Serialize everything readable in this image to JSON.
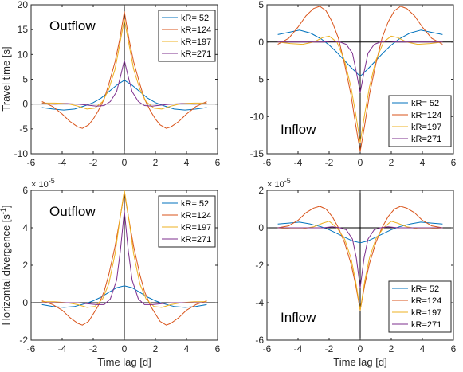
{
  "colors": {
    "kR52": "#0072BD",
    "kR124": "#D95319",
    "kR197": "#EDB120",
    "kR271": "#7E2F8E",
    "axis": "#262626",
    "zero_line": "#000000"
  },
  "chart_data": [
    {
      "type": "line",
      "panel": "top-left",
      "annotation": "Outflow",
      "xlabel": "",
      "ylabel": "Travel time [s]",
      "exponent": "",
      "xlim": [
        -6,
        6
      ],
      "ylim": [
        -10,
        20
      ],
      "xticks": [
        -6,
        -4,
        -2,
        0,
        2,
        4,
        6
      ],
      "yticks": [
        -10,
        -5,
        0,
        5,
        10,
        15,
        20
      ],
      "legend_position": "top-right",
      "grid": false,
      "series": [
        {
          "name": "kR= 52",
          "color_key": "kR52",
          "x": [
            -5.3,
            -4.6,
            -3.9,
            -3.2,
            -2.5,
            -2,
            -1.5,
            -1,
            -0.5,
            0,
            0.5,
            1,
            1.5,
            2,
            2.5,
            3.2,
            3.9,
            4.6,
            5.3
          ],
          "y": [
            -0.7,
            -1.0,
            -1.2,
            -1.0,
            -0.3,
            0.3,
            1.2,
            2.5,
            3.8,
            4.8,
            3.8,
            2.5,
            1.2,
            0.3,
            -0.3,
            -1.0,
            -1.2,
            -1.0,
            -0.7
          ]
        },
        {
          "name": "kR=124",
          "color_key": "kR124",
          "x": [
            -5.3,
            -4.6,
            -4,
            -3.5,
            -3,
            -2.7,
            -2.3,
            -2,
            -1.7,
            -1.3,
            -1,
            -0.6,
            -0.3,
            0,
            0.3,
            0.6,
            1,
            1.3,
            1.7,
            2,
            2.3,
            2.7,
            3,
            3.5,
            4,
            4.6,
            5.3
          ],
          "y": [
            0.5,
            -0.5,
            -2.0,
            -3.5,
            -4.6,
            -4.9,
            -4.2,
            -3.0,
            -1.5,
            1.0,
            4.0,
            8.5,
            13.0,
            18.6,
            13.0,
            8.5,
            4.0,
            1.0,
            -1.5,
            -3.0,
            -4.2,
            -4.9,
            -4.6,
            -3.5,
            -2.0,
            -0.5,
            0.5
          ]
        },
        {
          "name": "kR=197",
          "color_key": "kR197",
          "x": [
            -5.3,
            -4.5,
            -3.7,
            -3,
            -2.4,
            -1.9,
            -1.4,
            -1,
            -0.6,
            -0.3,
            0,
            0.3,
            0.6,
            1,
            1.4,
            1.9,
            2.4,
            3,
            3.7,
            4.5,
            5.3
          ],
          "y": [
            0.2,
            0.2,
            0.1,
            -0.4,
            -1.0,
            -0.8,
            0.5,
            3.0,
            7.0,
            12.0,
            17.0,
            12.0,
            7.0,
            3.0,
            0.5,
            -0.8,
            -1.0,
            -0.4,
            0.1,
            0.2,
            0.2
          ]
        },
        {
          "name": "kR=271",
          "color_key": "kR271",
          "x": [
            -5.3,
            -4.5,
            -3.7,
            -3,
            -2.4,
            -1.8,
            -1.3,
            -0.9,
            -0.5,
            -0.25,
            0,
            0.25,
            0.5,
            0.9,
            1.3,
            1.8,
            2.4,
            3,
            3.7,
            4.5,
            5.3
          ],
          "y": [
            0.1,
            0,
            0.1,
            0,
            -0.2,
            -0.4,
            -0.3,
            0.5,
            2.5,
            5.5,
            8.8,
            5.5,
            2.5,
            0.5,
            -0.3,
            -0.4,
            -0.2,
            0,
            0.1,
            0,
            0.1
          ]
        }
      ]
    },
    {
      "type": "line",
      "panel": "top-right",
      "annotation": "Inflow",
      "xlabel": "",
      "ylabel": "",
      "exponent": "",
      "xlim": [
        -6,
        6
      ],
      "ylim": [
        -15,
        5
      ],
      "xticks": [
        -6,
        -4,
        -2,
        0,
        2,
        4,
        6
      ],
      "yticks": [
        -15,
        -10,
        -5,
        0,
        5
      ],
      "legend_position": "bottom-right",
      "grid": false,
      "series": [
        {
          "name": "kR= 52",
          "color_key": "kR52",
          "x": [
            -5.3,
            -4.6,
            -3.9,
            -3.2,
            -2.5,
            -2,
            -1.5,
            -1,
            -0.5,
            0,
            0.5,
            1,
            1.5,
            2,
            2.5,
            3.2,
            3.9,
            4.6,
            5.3
          ],
          "y": [
            1.0,
            1.3,
            1.6,
            1.2,
            0.4,
            -0.4,
            -1.4,
            -2.5,
            -3.6,
            -4.6,
            -3.6,
            -2.5,
            -1.4,
            -0.4,
            0.4,
            1.2,
            1.6,
            1.3,
            1.0
          ]
        },
        {
          "name": "kR=124",
          "color_key": "kR124",
          "x": [
            -5.3,
            -4.6,
            -4,
            -3.5,
            -3,
            -2.6,
            -2.2,
            -1.8,
            -1.4,
            -1,
            -0.6,
            -0.3,
            0,
            0.3,
            0.6,
            1,
            1.4,
            1.8,
            2.2,
            2.6,
            3,
            3.5,
            4,
            4.6,
            5.3
          ],
          "y": [
            -0.3,
            0.5,
            2.0,
            3.5,
            4.5,
            4.8,
            4.2,
            2.7,
            0.5,
            -3.0,
            -7.0,
            -11.0,
            -14.7,
            -11.0,
            -7.0,
            -3.0,
            0.5,
            2.7,
            4.2,
            4.8,
            4.5,
            3.5,
            2.0,
            0.5,
            -0.3
          ]
        },
        {
          "name": "kR=197",
          "color_key": "kR197",
          "x": [
            -5.3,
            -4.5,
            -3.7,
            -3,
            -2.4,
            -2,
            -1.5,
            -1,
            -0.6,
            -0.3,
            0,
            0.3,
            0.6,
            1,
            1.5,
            2,
            2.4,
            3,
            3.7,
            4.5,
            5.3
          ],
          "y": [
            0,
            -0.2,
            -0.3,
            0,
            0.6,
            0.8,
            0,
            -2.5,
            -6.0,
            -9.5,
            -13.5,
            -9.5,
            -6.0,
            -2.5,
            0,
            0.8,
            0.6,
            0,
            -0.3,
            -0.2,
            0
          ]
        },
        {
          "name": "kR=271",
          "color_key": "kR271",
          "x": [
            -5.3,
            -4.5,
            -3.7,
            -3,
            -2.4,
            -1.8,
            -1.3,
            -0.9,
            -0.5,
            -0.25,
            0,
            0.25,
            0.5,
            0.9,
            1.3,
            1.8,
            2.4,
            3,
            3.7,
            4.5,
            5.3
          ],
          "y": [
            0,
            0,
            0,
            0,
            0,
            0.1,
            0,
            -0.3,
            -1.5,
            -4.0,
            -6.8,
            -4.0,
            -1.5,
            -0.3,
            0,
            0.1,
            0,
            0,
            0,
            0,
            0
          ]
        }
      ]
    },
    {
      "type": "line",
      "panel": "bottom-left",
      "annotation": "Outflow",
      "xlabel": "Time lag [d]",
      "ylabel": "Horizontal divergence [s",
      "ylabel_sup": "-1",
      "ylabel_close": "]",
      "exponent_base": "× 10",
      "exponent_power": "-5",
      "xlim": [
        -6,
        6
      ],
      "ylim": [
        -2,
        6
      ],
      "xticks": [
        -6,
        -4,
        -2,
        0,
        2,
        4,
        6
      ],
      "yticks": [
        -2,
        0,
        2,
        4,
        6
      ],
      "legend_position": "top-right",
      "grid": false,
      "series": [
        {
          "name": "kR= 52",
          "color_key": "kR52",
          "x": [
            -5.3,
            -4.6,
            -3.9,
            -3.2,
            -2.5,
            -2,
            -1.5,
            -1,
            -0.5,
            0,
            0.5,
            1,
            1.5,
            2,
            2.5,
            3.2,
            3.9,
            4.6,
            5.3
          ],
          "y": [
            -0.1,
            -0.2,
            -0.25,
            -0.2,
            -0.05,
            0.1,
            0.3,
            0.55,
            0.8,
            0.9,
            0.8,
            0.55,
            0.3,
            0.1,
            -0.05,
            -0.2,
            -0.25,
            -0.2,
            -0.1
          ]
        },
        {
          "name": "kR=124",
          "color_key": "kR124",
          "x": [
            -5.3,
            -4.6,
            -4,
            -3.5,
            -3,
            -2.7,
            -2.3,
            -2,
            -1.7,
            -1.3,
            -1,
            -0.6,
            -0.3,
            0,
            0.3,
            0.6,
            1,
            1.3,
            1.7,
            2,
            2.3,
            2.7,
            3,
            3.5,
            4,
            4.6,
            5.3
          ],
          "y": [
            0.1,
            -0.1,
            -0.4,
            -0.8,
            -1.1,
            -1.2,
            -1.0,
            -0.6,
            -0.2,
            0.6,
            1.5,
            3.0,
            4.4,
            5.9,
            4.4,
            3.0,
            1.5,
            0.6,
            -0.2,
            -0.6,
            -1.0,
            -1.2,
            -1.1,
            -0.8,
            -0.4,
            -0.1,
            0.1
          ]
        },
        {
          "name": "kR=197",
          "color_key": "kR197",
          "x": [
            -5.3,
            -4.5,
            -3.7,
            -3,
            -2.4,
            -1.9,
            -1.4,
            -1,
            -0.6,
            -0.3,
            0,
            0.3,
            0.6,
            1,
            1.4,
            1.9,
            2.4,
            3,
            3.7,
            4.5,
            5.3
          ],
          "y": [
            0.05,
            0.05,
            0,
            -0.1,
            -0.25,
            -0.2,
            0.2,
            1.0,
            2.6,
            4.4,
            6.0,
            4.4,
            2.6,
            1.0,
            0.2,
            -0.2,
            -0.25,
            -0.1,
            0,
            0.05,
            0.05
          ]
        },
        {
          "name": "kR=271",
          "color_key": "kR271",
          "x": [
            -5.3,
            -4.5,
            -3.7,
            -3,
            -2.4,
            -1.8,
            -1.3,
            -0.9,
            -0.5,
            -0.25,
            0,
            0.25,
            0.5,
            0.9,
            1.3,
            1.8,
            2.4,
            3,
            3.7,
            4.5,
            5.3
          ],
          "y": [
            0,
            0,
            0,
            0,
            -0.05,
            -0.1,
            -0.1,
            0.2,
            1.2,
            2.8,
            4.9,
            2.8,
            1.2,
            0.2,
            -0.1,
            -0.1,
            -0.05,
            0,
            0,
            0,
            0
          ]
        }
      ]
    },
    {
      "type": "line",
      "panel": "bottom-right",
      "annotation": "Inflow",
      "xlabel": "Time lag [d]",
      "ylabel": "",
      "exponent_base": "× 10",
      "exponent_power": "-5",
      "xlim": [
        -6,
        6
      ],
      "ylim": [
        -6,
        2
      ],
      "xticks": [
        -6,
        -4,
        -2,
        0,
        2,
        4,
        6
      ],
      "yticks": [
        -6,
        -4,
        -2,
        0,
        2
      ],
      "legend_position": "bottom-right",
      "grid": false,
      "series": [
        {
          "name": "kR= 52",
          "color_key": "kR52",
          "x": [
            -5.3,
            -4.6,
            -3.9,
            -3.2,
            -2.5,
            -2,
            -1.5,
            -1,
            -0.5,
            0,
            0.5,
            1,
            1.5,
            2,
            2.5,
            3.2,
            3.9,
            4.6,
            5.3
          ],
          "y": [
            0.2,
            0.25,
            0.3,
            0.2,
            0.05,
            -0.1,
            -0.3,
            -0.5,
            -0.7,
            -0.8,
            -0.7,
            -0.5,
            -0.3,
            -0.1,
            0.05,
            0.2,
            0.3,
            0.25,
            0.2
          ]
        },
        {
          "name": "kR=124",
          "color_key": "kR124",
          "x": [
            -5.3,
            -4.6,
            -4,
            -3.5,
            -3,
            -2.6,
            -2.2,
            -1.8,
            -1.4,
            -1,
            -0.6,
            -0.3,
            0,
            0.3,
            0.6,
            1,
            1.4,
            1.8,
            2.2,
            2.6,
            3,
            3.5,
            4,
            4.6,
            5.3
          ],
          "y": [
            0,
            0.1,
            0.4,
            0.8,
            1.05,
            1.15,
            1.0,
            0.6,
            0,
            -0.8,
            -1.9,
            -3.0,
            -4.4,
            -3.0,
            -1.9,
            -0.8,
            0,
            0.6,
            1.0,
            1.15,
            1.05,
            0.8,
            0.4,
            0.1,
            0
          ]
        },
        {
          "name": "kR=197",
          "color_key": "kR197",
          "x": [
            -5.3,
            -4.5,
            -3.7,
            -3,
            -2.4,
            -2,
            -1.5,
            -1,
            -0.6,
            -0.3,
            0,
            0.3,
            0.6,
            1,
            1.5,
            2,
            2.4,
            3,
            3.7,
            4.5,
            5.3
          ],
          "y": [
            0,
            -0.05,
            -0.05,
            0.05,
            0.25,
            0.35,
            0,
            -0.6,
            -1.6,
            -2.8,
            -4.4,
            -2.8,
            -1.6,
            -0.6,
            0,
            0.35,
            0.25,
            0.05,
            -0.05,
            -0.05,
            0
          ]
        },
        {
          "name": "kR=271",
          "color_key": "kR271",
          "x": [
            -5.3,
            -4.5,
            -3.7,
            -3,
            -2.4,
            -1.8,
            -1.3,
            -0.9,
            -0.5,
            -0.25,
            0,
            0.25,
            0.5,
            0.9,
            1.3,
            1.8,
            2.4,
            3,
            3.7,
            4.5,
            5.3
          ],
          "y": [
            0,
            0,
            0,
            0,
            0,
            0.05,
            0,
            -0.1,
            -0.6,
            -1.6,
            -3.2,
            -1.6,
            -0.6,
            -0.1,
            0,
            0.05,
            0,
            0,
            0,
            0,
            0
          ]
        }
      ]
    }
  ]
}
